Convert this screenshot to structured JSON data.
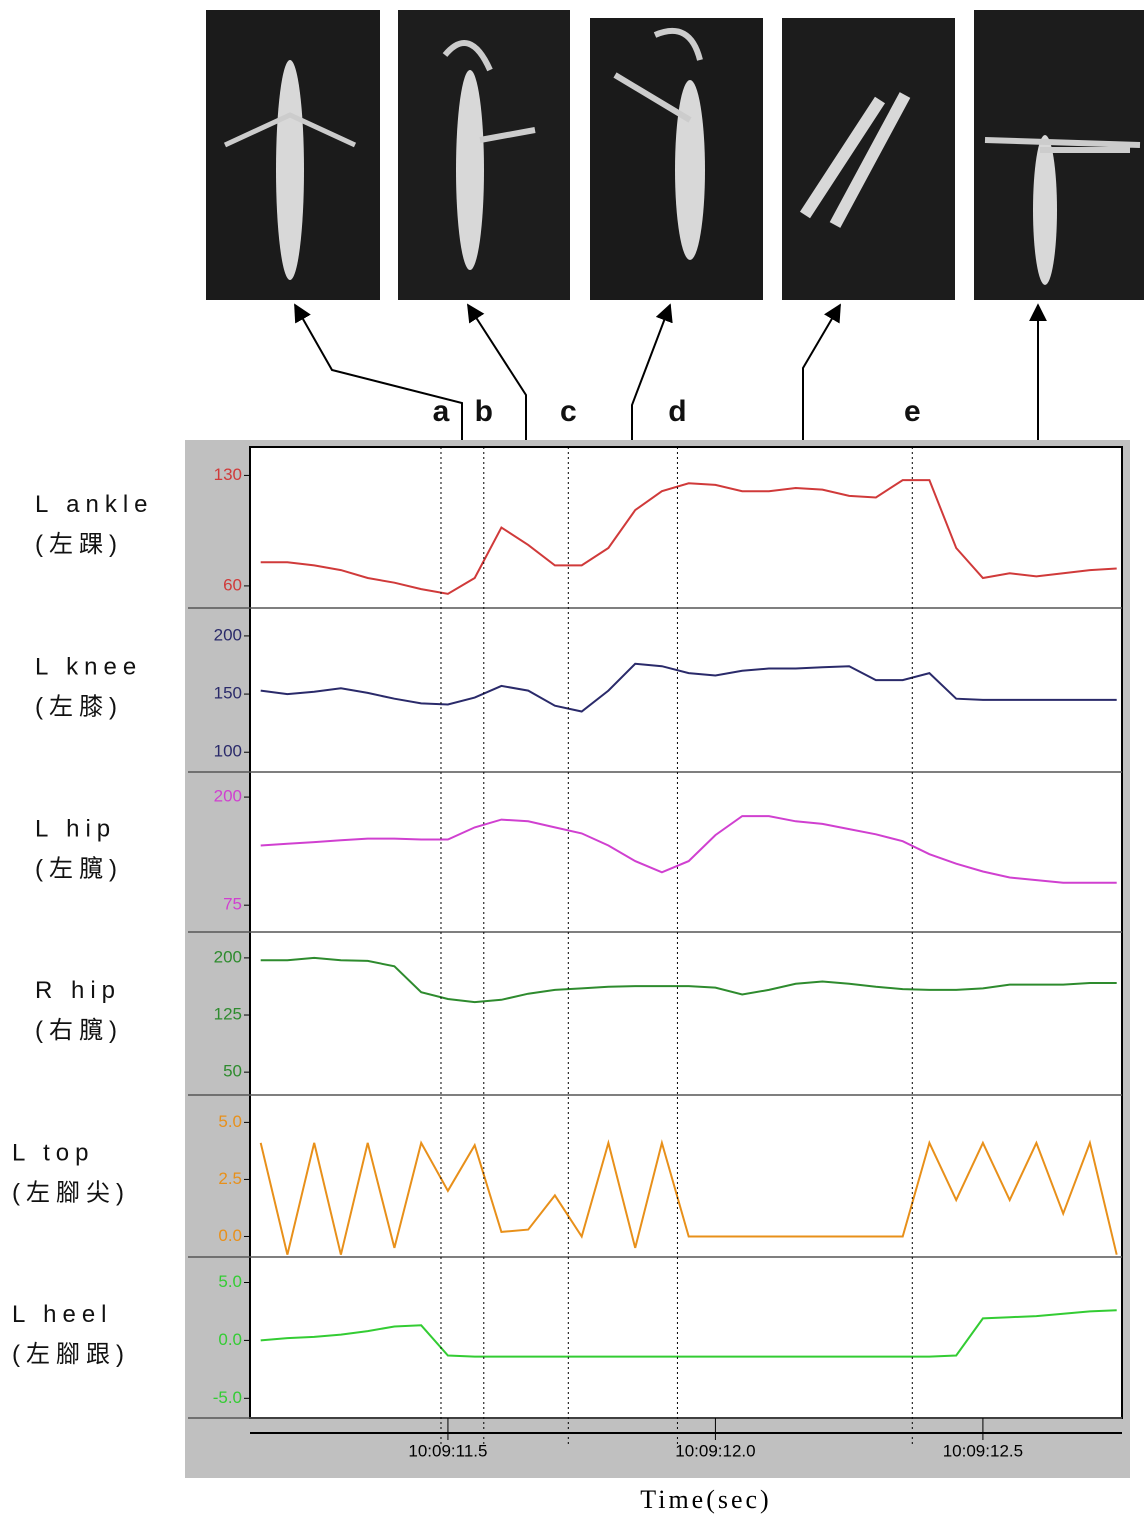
{
  "chart_data": [
    {
      "type": "line",
      "title": "L ankle",
      "subtitle": "(左踝)",
      "color": "#d03a3a",
      "x": [
        11.15,
        11.2,
        11.25,
        11.3,
        11.35,
        11.4,
        11.45,
        11.5,
        11.55,
        11.6,
        11.65,
        11.7,
        11.75,
        11.8,
        11.85,
        11.9,
        11.95,
        12.0,
        12.05,
        12.1,
        12.15,
        12.2,
        12.25,
        12.3,
        12.35,
        12.4,
        12.45,
        12.5,
        12.55,
        12.6,
        12.65,
        12.7,
        12.75
      ],
      "values": [
        75,
        75,
        73,
        70,
        65,
        62,
        58,
        55,
        65,
        97,
        86,
        73,
        73,
        84,
        108,
        120,
        125,
        124,
        120,
        120,
        122,
        121,
        117,
        116,
        127,
        127,
        84,
        65,
        68,
        66,
        68,
        70,
        71
      ],
      "xlim": [
        11.13,
        12.76
      ],
      "ylim": [
        46,
        148
      ],
      "yticks": [
        60,
        130
      ]
    },
    {
      "type": "line",
      "title": "L knee",
      "subtitle": "(左膝)",
      "color": "#2a2a6a",
      "x": [
        11.15,
        11.2,
        11.25,
        11.3,
        11.35,
        11.4,
        11.45,
        11.5,
        11.55,
        11.6,
        11.65,
        11.7,
        11.75,
        11.8,
        11.85,
        11.9,
        11.95,
        12.0,
        12.05,
        12.1,
        12.15,
        12.2,
        12.25,
        12.3,
        12.35,
        12.4,
        12.45,
        12.5,
        12.55,
        12.6,
        12.65,
        12.7,
        12.75
      ],
      "values": [
        153,
        150,
        152,
        155,
        151,
        146,
        142,
        141,
        147,
        157,
        153,
        140,
        135,
        153,
        176,
        174,
        168,
        166,
        170,
        172,
        172,
        173,
        174,
        162,
        162,
        168,
        146,
        145,
        145,
        145,
        145,
        145,
        145
      ],
      "xlim": [
        11.13,
        12.76
      ],
      "ylim": [
        83,
        224
      ],
      "yticks": [
        100,
        150,
        200
      ]
    },
    {
      "type": "line",
      "title": "L hip",
      "subtitle": "(左臗)",
      "color": "#d040d0",
      "x": [
        11.15,
        11.2,
        11.25,
        11.3,
        11.35,
        11.4,
        11.45,
        11.5,
        11.55,
        11.6,
        11.65,
        11.7,
        11.75,
        11.8,
        11.85,
        11.9,
        11.95,
        12.0,
        12.05,
        12.1,
        12.15,
        12.2,
        12.25,
        12.3,
        12.35,
        12.4,
        12.45,
        12.5,
        12.55,
        12.6,
        12.65,
        12.7,
        12.75
      ],
      "values": [
        144,
        146,
        148,
        150,
        152,
        152,
        151,
        151,
        165,
        174,
        172,
        165,
        158,
        144,
        126,
        113,
        126,
        156,
        178,
        178,
        172,
        169,
        163,
        157,
        149,
        134,
        123,
        114,
        107,
        104,
        101,
        101,
        101
      ],
      "xlim": [
        11.13,
        12.76
      ],
      "ylim": [
        44,
        229
      ],
      "yticks": [
        75,
        200
      ]
    },
    {
      "type": "line",
      "title": "R hip",
      "subtitle": "(右臗)",
      "color": "#2e8b2e",
      "x": [
        11.15,
        11.2,
        11.25,
        11.3,
        11.35,
        11.4,
        11.45,
        11.5,
        11.55,
        11.6,
        11.65,
        11.7,
        11.75,
        11.8,
        11.85,
        11.9,
        11.95,
        12.0,
        12.05,
        12.1,
        12.15,
        12.2,
        12.25,
        12.3,
        12.35,
        12.4,
        12.45,
        12.5,
        12.55,
        12.6,
        12.65,
        12.7,
        12.75
      ],
      "values": [
        197,
        197,
        200,
        197,
        196,
        189,
        155,
        146,
        142,
        145,
        153,
        158,
        160,
        162,
        163,
        163,
        163,
        161,
        152,
        158,
        166,
        169,
        166,
        162,
        159,
        158,
        158,
        160,
        165,
        165,
        165,
        167,
        167
      ],
      "xlim": [
        11.13,
        12.76
      ],
      "ylim": [
        20,
        234
      ],
      "yticks": [
        50,
        125,
        200
      ]
    },
    {
      "type": "line",
      "title": "L top",
      "subtitle": "(左腳尖)",
      "color": "#e8901a",
      "x": [
        11.15,
        11.2,
        11.25,
        11.3,
        11.35,
        11.4,
        11.45,
        11.5,
        11.55,
        11.6,
        11.65,
        11.7,
        11.75,
        11.8,
        11.85,
        11.9,
        11.95,
        12.0,
        12.05,
        12.1,
        12.15,
        12.2,
        12.25,
        12.3,
        12.35,
        12.4,
        12.45,
        12.5,
        12.55,
        12.6,
        12.65,
        12.7,
        12.75
      ],
      "values": [
        4.1,
        -0.8,
        4.1,
        -0.8,
        4.1,
        -0.5,
        4.1,
        2.0,
        4.0,
        0.2,
        0.3,
        1.8,
        0.0,
        4.1,
        -0.5,
        4.1,
        0.0,
        0.0,
        0.0,
        0.0,
        0.0,
        0.0,
        0.0,
        0.0,
        0.0,
        4.1,
        1.6,
        4.1,
        1.6,
        4.1,
        1.0,
        4.1,
        -0.8
      ],
      "xlim": [
        11.13,
        12.76
      ],
      "ylim": [
        -0.9,
        6.2
      ],
      "yticks": [
        {
          "value": 0,
          "label": "0.0"
        },
        2.5,
        {
          "value": 5,
          "label": "5.0"
        }
      ]
    },
    {
      "type": "line",
      "title": "L heel",
      "subtitle": "(左腳跟)",
      "color": "#33cc33",
      "x": [
        11.15,
        11.2,
        11.25,
        11.3,
        11.35,
        11.4,
        11.45,
        11.5,
        11.55,
        11.6,
        11.65,
        11.7,
        11.75,
        11.8,
        11.85,
        11.9,
        11.95,
        12.0,
        12.05,
        12.1,
        12.15,
        12.2,
        12.25,
        12.3,
        12.35,
        12.4,
        12.45,
        12.5,
        12.55,
        12.6,
        12.65,
        12.7,
        12.75
      ],
      "values": [
        0.0,
        0.2,
        0.3,
        0.5,
        0.8,
        1.2,
        1.3,
        -1.3,
        -1.4,
        -1.4,
        -1.4,
        -1.4,
        -1.4,
        -1.4,
        -1.4,
        -1.4,
        -1.4,
        -1.4,
        -1.4,
        -1.4,
        -1.4,
        -1.4,
        -1.4,
        -1.4,
        -1.4,
        -1.4,
        -1.3,
        1.9,
        2.0,
        2.1,
        2.3,
        2.5,
        2.6
      ],
      "xlim": [
        11.13,
        12.76
      ],
      "ylim": [
        -6.7,
        7.2
      ],
      "yticks": [
        {
          "value": -5,
          "label": "-5.0"
        },
        {
          "value": 0,
          "label": "0.0"
        },
        {
          "value": 5,
          "label": "5.0"
        }
      ],
      "xticks": [
        {
          "value": 11.5,
          "label": "10:09:11.5"
        },
        {
          "value": 12.0,
          "label": "10:09:12.0"
        },
        {
          "value": 12.5,
          "label": "10:09:12.5"
        }
      ],
      "xlabel": "Time(sec)"
    }
  ],
  "events": {
    "labels": [
      "a",
      "b",
      "c",
      "d",
      "e"
    ],
    "x": [
      11.487,
      11.567,
      11.725,
      11.929,
      12.368
    ]
  }
}
